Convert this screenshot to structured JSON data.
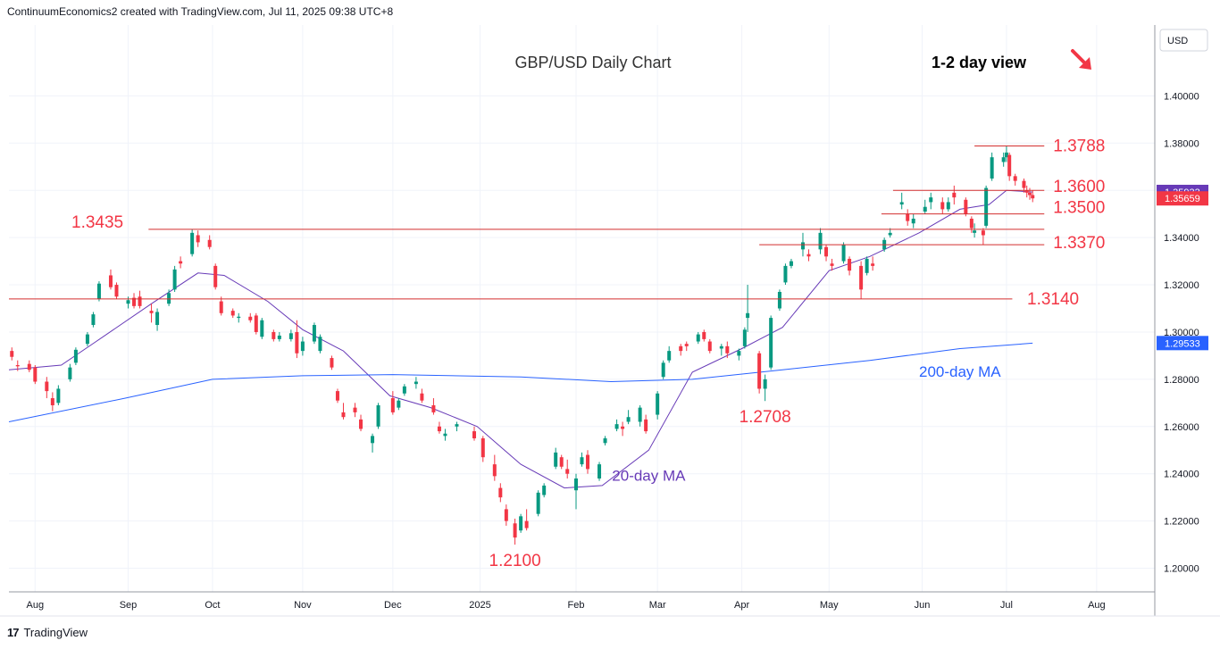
{
  "header": {
    "attribution": "ContinuumEconomics2 created with TradingView.com, Jul 11, 2025 09:38 UTC+8"
  },
  "footer": {
    "brand": "TradingView"
  },
  "chart_data": {
    "type": "candlestick",
    "title": "GBP/USD Daily Chart",
    "view_label": "1-2 day view",
    "view_direction": "down",
    "currency_label": "USD",
    "ylim": [
      1.19,
      1.43
    ],
    "y_ticks": [
      "1.40000",
      "1.38000",
      "1.36000",
      "1.34000",
      "1.32000",
      "1.30000",
      "1.28000",
      "1.26000",
      "1.24000",
      "1.22000",
      "1.20000"
    ],
    "y_tick_values": [
      1.4,
      1.38,
      1.36,
      1.34,
      1.32,
      1.3,
      1.28,
      1.26,
      1.24,
      1.22,
      1.2
    ],
    "x_ticks": [
      "Aug",
      "Sep",
      "Oct",
      "Nov",
      "Dec",
      "2025",
      "Feb",
      "Mar",
      "Apr",
      "May",
      "Jun",
      "Jul",
      "Aug"
    ],
    "x_tick_dates": [
      "2024-08-01",
      "2024-09-02",
      "2024-10-01",
      "2024-11-01",
      "2024-12-02",
      "2025-01-01",
      "2025-02-03",
      "2025-03-03",
      "2025-04-01",
      "2025-05-01",
      "2025-06-02",
      "2025-07-01",
      "2025-08-01"
    ],
    "last_price": {
      "label": "1.35659",
      "value": 1.35659,
      "color": "#f23645"
    },
    "ma200_price": {
      "label": "1.29533",
      "value": 1.29533,
      "color": "#2962ff"
    },
    "ma20_price": {
      "label": "1.35933",
      "value": 1.35933
    },
    "levels": [
      {
        "label": "1.3788",
        "value": 1.3788,
        "from": "2025-06-20",
        "to": "2025-07-14"
      },
      {
        "label": "1.3600",
        "value": 1.36,
        "from": "2025-05-23",
        "to": "2025-07-14"
      },
      {
        "label": "1.3500",
        "value": 1.35,
        "from": "2025-05-19",
        "to": "2025-07-14"
      },
      {
        "label": "1.3435",
        "value": 1.3435,
        "from": "2024-09-09",
        "to": "2025-07-14"
      },
      {
        "label": "1.3370",
        "value": 1.337,
        "from": "2025-04-07",
        "to": "2025-07-14"
      },
      {
        "label": "1.3140",
        "value": 1.314,
        "from": "2024-07-23",
        "to": "2025-07-03"
      }
    ],
    "annotations": [
      {
        "label": "1.2708",
        "date": "2025-04-09",
        "value": 1.2708
      },
      {
        "label": "1.2100",
        "date": "2025-01-13",
        "value": 1.21
      },
      {
        "label": "20-day MA",
        "date": "2025-02-28",
        "value": 1.239
      },
      {
        "label": "200-day MA",
        "date": "2025-06-15",
        "value": 1.283
      }
    ],
    "colors": {
      "up": "#089981",
      "down": "#f23645",
      "ma20": "#673ab7",
      "ma200": "#2962ff",
      "level_line": "#d32f2f",
      "level_text": "#f23645",
      "ma20_text": "#673ab7",
      "ma200_text": "#2962ff"
    },
    "series": [
      {
        "name": "20-day MA",
        "dates": [
          "2024-07-23",
          "2024-08-10",
          "2024-08-22",
          "2024-09-10",
          "2024-09-26",
          "2024-10-05",
          "2024-10-20",
          "2024-11-01",
          "2024-11-15",
          "2024-12-01",
          "2024-12-15",
          "2024-12-31",
          "2025-01-15",
          "2025-01-30",
          "2025-02-12",
          "2025-02-28",
          "2025-03-15",
          "2025-04-01",
          "2025-04-15",
          "2025-05-01",
          "2025-05-15",
          "2025-06-01",
          "2025-06-15",
          "2025-06-25",
          "2025-07-01",
          "2025-07-10"
        ],
        "values": [
          1.284,
          1.286,
          1.296,
          1.312,
          1.325,
          1.324,
          1.313,
          1.301,
          1.292,
          1.273,
          1.268,
          1.26,
          1.244,
          1.234,
          1.235,
          1.25,
          1.283,
          1.293,
          1.302,
          1.326,
          1.332,
          1.342,
          1.352,
          1.354,
          1.36,
          1.3593
        ]
      },
      {
        "name": "200-day MA",
        "dates": [
          "2024-07-23",
          "2024-09-01",
          "2024-10-01",
          "2024-11-01",
          "2024-12-02",
          "2025-01-15",
          "2025-02-15",
          "2025-03-15",
          "2025-04-15",
          "2025-05-15",
          "2025-06-15",
          "2025-07-10"
        ],
        "values": [
          1.262,
          1.272,
          1.28,
          1.2815,
          1.282,
          1.281,
          1.279,
          1.28,
          1.284,
          1.288,
          1.293,
          1.2953
        ]
      }
    ],
    "ohlc_columns": [
      "date",
      "open",
      "high",
      "low",
      "close"
    ],
    "ohlc": [
      [
        "2024-07-24",
        1.292,
        1.2935,
        1.288,
        1.2895
      ],
      [
        "2024-07-26",
        1.286,
        1.288,
        1.2835,
        1.2855
      ],
      [
        "2024-07-30",
        1.2865,
        1.288,
        1.283,
        1.284
      ],
      [
        "2024-08-01",
        1.285,
        1.286,
        1.278,
        1.279
      ],
      [
        "2024-08-05",
        1.279,
        1.281,
        1.272,
        1.275
      ],
      [
        "2024-08-07",
        1.272,
        1.2745,
        1.2665,
        1.269
      ],
      [
        "2024-08-09",
        1.27,
        1.2775,
        1.269,
        1.276
      ],
      [
        "2024-08-13",
        1.28,
        1.2865,
        1.279,
        1.285
      ],
      [
        "2024-08-15",
        1.287,
        1.2935,
        1.286,
        1.2925
      ],
      [
        "2024-08-19",
        1.295,
        1.3,
        1.294,
        1.299
      ],
      [
        "2024-08-21",
        1.303,
        1.3085,
        1.302,
        1.3075
      ],
      [
        "2024-08-23",
        1.314,
        1.3215,
        1.313,
        1.3205
      ],
      [
        "2024-08-27",
        1.324,
        1.3265,
        1.318,
        1.319
      ],
      [
        "2024-08-29",
        1.32,
        1.321,
        1.314,
        1.315
      ],
      [
        "2024-09-02",
        1.312,
        1.315,
        1.31,
        1.3135
      ],
      [
        "2024-09-04",
        1.3145,
        1.3165,
        1.31,
        1.311
      ],
      [
        "2024-09-06",
        1.315,
        1.3175,
        1.31,
        1.311
      ],
      [
        "2024-09-10",
        1.309,
        1.312,
        1.304,
        1.308
      ],
      [
        "2024-09-12",
        1.303,
        1.31,
        1.3005,
        1.3085
      ],
      [
        "2024-09-16",
        1.312,
        1.318,
        1.311,
        1.3165
      ],
      [
        "2024-09-18",
        1.318,
        1.328,
        1.317,
        1.3265
      ],
      [
        "2024-09-20",
        1.33,
        1.332,
        1.327,
        1.329
      ],
      [
        "2024-09-24",
        1.333,
        1.3435,
        1.332,
        1.342
      ],
      [
        "2024-09-26",
        1.341,
        1.343,
        1.336,
        1.338
      ],
      [
        "2024-09-30",
        1.339,
        1.341,
        1.335,
        1.336
      ],
      [
        "2024-10-02",
        1.328,
        1.329,
        1.318,
        1.319
      ],
      [
        "2024-10-04",
        1.313,
        1.315,
        1.307,
        1.308
      ],
      [
        "2024-10-08",
        1.309,
        1.31,
        1.306,
        1.307
      ],
      [
        "2024-10-10",
        1.306,
        1.308,
        1.304,
        1.3065
      ],
      [
        "2024-10-14",
        1.3065,
        1.308,
        1.304,
        1.305
      ],
      [
        "2024-10-16",
        1.307,
        1.308,
        1.299,
        1.3
      ],
      [
        "2024-10-18",
        1.298,
        1.306,
        1.297,
        1.305
      ],
      [
        "2024-10-22",
        1.3,
        1.301,
        1.296,
        1.297
      ],
      [
        "2024-10-24",
        1.297,
        1.3,
        1.296,
        1.2985
      ],
      [
        "2024-10-28",
        1.297,
        1.301,
        1.296,
        1.2995
      ],
      [
        "2024-10-30",
        1.3,
        1.305,
        1.289,
        1.291
      ],
      [
        "2024-11-01",
        1.292,
        1.298,
        1.29,
        1.296
      ],
      [
        "2024-11-05",
        1.296,
        1.304,
        1.295,
        1.303
      ],
      [
        "2024-11-07",
        1.292,
        1.299,
        1.291,
        1.298
      ],
      [
        "2024-11-11",
        1.289,
        1.29,
        1.284,
        1.285
      ],
      [
        "2024-11-13",
        1.275,
        1.276,
        1.27,
        1.271
      ],
      [
        "2024-11-15",
        1.266,
        1.27,
        1.263,
        1.264
      ],
      [
        "2024-11-19",
        1.268,
        1.27,
        1.264,
        1.266
      ],
      [
        "2024-11-21",
        1.263,
        1.265,
        1.258,
        1.259
      ],
      [
        "2024-11-25",
        1.253,
        1.257,
        1.249,
        1.256
      ],
      [
        "2024-11-27",
        1.26,
        1.27,
        1.259,
        1.269
      ],
      [
        "2024-12-02",
        1.272,
        1.275,
        1.265,
        1.266
      ],
      [
        "2024-12-04",
        1.268,
        1.272,
        1.267,
        1.271
      ],
      [
        "2024-12-06",
        1.274,
        1.278,
        1.273,
        1.277
      ],
      [
        "2024-12-10",
        1.278,
        1.281,
        1.276,
        1.279
      ],
      [
        "2024-12-12",
        1.274,
        1.276,
        1.27,
        1.271
      ],
      [
        "2024-12-16",
        1.269,
        1.272,
        1.265,
        1.266
      ],
      [
        "2024-12-18",
        1.26,
        1.262,
        1.257,
        1.258
      ],
      [
        "2024-12-20",
        1.256,
        1.259,
        1.254,
        1.257
      ],
      [
        "2024-12-24",
        1.26,
        1.262,
        1.258,
        1.261
      ],
      [
        "2024-12-30",
        1.258,
        1.26,
        1.254,
        1.255
      ],
      [
        "2025-01-02",
        1.255,
        1.256,
        1.245,
        1.247
      ],
      [
        "2025-01-06",
        1.244,
        1.248,
        1.237,
        1.239
      ],
      [
        "2025-01-08",
        1.234,
        1.236,
        1.228,
        1.23
      ],
      [
        "2025-01-10",
        1.225,
        1.227,
        1.218,
        1.22
      ],
      [
        "2025-01-13",
        1.219,
        1.221,
        1.21,
        1.213
      ],
      [
        "2025-01-15",
        1.216,
        1.223,
        1.215,
        1.222
      ],
      [
        "2025-01-17",
        1.22,
        1.225,
        1.216,
        1.217
      ],
      [
        "2025-01-21",
        1.223,
        1.233,
        1.222,
        1.232
      ],
      [
        "2025-01-23",
        1.231,
        1.236,
        1.23,
        1.235
      ],
      [
        "2025-01-27",
        1.243,
        1.251,
        1.242,
        1.249
      ],
      [
        "2025-01-29",
        1.247,
        1.248,
        1.242,
        1.243
      ],
      [
        "2025-01-31",
        1.242,
        1.246,
        1.238,
        1.24
      ],
      [
        "2025-02-03",
        1.233,
        1.24,
        1.225,
        1.238
      ],
      [
        "2025-02-05",
        1.244,
        1.249,
        1.243,
        1.247
      ],
      [
        "2025-02-07",
        1.248,
        1.25,
        1.24,
        1.242
      ],
      [
        "2025-02-11",
        1.238,
        1.245,
        1.237,
        1.244
      ],
      [
        "2025-02-13",
        1.253,
        1.256,
        1.252,
        1.255
      ],
      [
        "2025-02-17",
        1.259,
        1.263,
        1.258,
        1.261
      ],
      [
        "2025-02-19",
        1.26,
        1.262,
        1.256,
        1.259
      ],
      [
        "2025-02-21",
        1.262,
        1.267,
        1.261,
        1.264
      ],
      [
        "2025-02-25",
        1.262,
        1.269,
        1.26,
        1.268
      ],
      [
        "2025-02-27",
        1.263,
        1.265,
        1.257,
        1.258
      ],
      [
        "2025-03-03",
        1.265,
        1.275,
        1.263,
        1.274
      ],
      [
        "2025-03-05",
        1.281,
        1.288,
        1.28,
        1.287
      ],
      [
        "2025-03-07",
        1.288,
        1.294,
        1.287,
        1.292
      ],
      [
        "2025-03-11",
        1.294,
        1.295,
        1.29,
        1.292
      ],
      [
        "2025-03-13",
        1.295,
        1.296,
        1.292,
        1.294
      ],
      [
        "2025-03-17",
        1.296,
        1.3,
        1.295,
        1.299
      ],
      [
        "2025-03-19",
        1.3,
        1.301,
        1.296,
        1.297
      ],
      [
        "2025-03-21",
        1.296,
        1.297,
        1.291,
        1.292
      ],
      [
        "2025-03-25",
        1.293,
        1.295,
        1.29,
        1.294
      ],
      [
        "2025-03-27",
        1.294,
        1.296,
        1.289,
        1.291
      ],
      [
        "2025-03-31",
        1.29,
        1.293,
        1.288,
        1.292
      ],
      [
        "2025-04-02",
        1.294,
        1.302,
        1.293,
        1.301
      ],
      [
        "2025-04-03",
        1.306,
        1.32,
        1.3,
        1.308
      ],
      [
        "2025-04-07",
        1.291,
        1.292,
        1.274,
        1.276
      ],
      [
        "2025-04-09",
        1.276,
        1.282,
        1.2708,
        1.28
      ],
      [
        "2025-04-11",
        1.285,
        1.307,
        1.284,
        1.306
      ],
      [
        "2025-04-14",
        1.31,
        1.318,
        1.309,
        1.317
      ],
      [
        "2025-04-16",
        1.321,
        1.329,
        1.32,
        1.328
      ],
      [
        "2025-04-18",
        1.328,
        1.331,
        1.327,
        1.33
      ],
      [
        "2025-04-22",
        1.335,
        1.342,
        1.332,
        1.338
      ],
      [
        "2025-04-24",
        1.333,
        1.335,
        1.33,
        1.332
      ],
      [
        "2025-04-28",
        1.335,
        1.344,
        1.333,
        1.342
      ],
      [
        "2025-04-30",
        1.336,
        1.337,
        1.33,
        1.332
      ],
      [
        "2025-05-02",
        1.329,
        1.331,
        1.326,
        1.328
      ],
      [
        "2025-05-06",
        1.33,
        1.338,
        1.329,
        1.337
      ],
      [
        "2025-05-08",
        1.331,
        1.332,
        1.324,
        1.326
      ],
      [
        "2025-05-12",
        1.328,
        1.33,
        1.314,
        1.318
      ],
      [
        "2025-05-14",
        1.325,
        1.332,
        1.324,
        1.331
      ],
      [
        "2025-05-16",
        1.329,
        1.332,
        1.326,
        1.328
      ],
      [
        "2025-05-20",
        1.335,
        1.34,
        1.334,
        1.339
      ],
      [
        "2025-05-22",
        1.341,
        1.344,
        1.34,
        1.342
      ],
      [
        "2025-05-26",
        1.354,
        1.359,
        1.352,
        1.355
      ],
      [
        "2025-05-28",
        1.35,
        1.352,
        1.345,
        1.347
      ],
      [
        "2025-05-30",
        1.346,
        1.35,
        1.344,
        1.348
      ],
      [
        "2025-06-03",
        1.351,
        1.356,
        1.35,
        1.353
      ],
      [
        "2025-06-05",
        1.355,
        1.359,
        1.352,
        1.357
      ],
      [
        "2025-06-09",
        1.355,
        1.357,
        1.35,
        1.352
      ],
      [
        "2025-06-11",
        1.352,
        1.357,
        1.351,
        1.355
      ],
      [
        "2025-06-13",
        1.359,
        1.362,
        1.354,
        1.357
      ],
      [
        "2025-06-17",
        1.356,
        1.357,
        1.349,
        1.35
      ],
      [
        "2025-06-19",
        1.348,
        1.349,
        1.342,
        1.344
      ],
      [
        "2025-06-20",
        1.342,
        1.346,
        1.34,
        1.343
      ],
      [
        "2025-06-23",
        1.343,
        1.344,
        1.337,
        1.341
      ],
      [
        "2025-06-24",
        1.345,
        1.362,
        1.344,
        1.361
      ],
      [
        "2025-06-26",
        1.365,
        1.376,
        1.364,
        1.374
      ],
      [
        "2025-06-30",
        1.372,
        1.376,
        1.37,
        1.374
      ],
      [
        "2025-07-01",
        1.374,
        1.3788,
        1.372,
        1.376
      ],
      [
        "2025-07-02",
        1.375,
        1.376,
        1.364,
        1.366
      ],
      [
        "2025-07-04",
        1.366,
        1.367,
        1.362,
        1.364
      ],
      [
        "2025-07-07",
        1.364,
        1.365,
        1.359,
        1.361
      ],
      [
        "2025-07-08",
        1.36,
        1.362,
        1.357,
        1.359
      ],
      [
        "2025-07-09",
        1.359,
        1.361,
        1.356,
        1.358
      ],
      [
        "2025-07-10",
        1.358,
        1.36,
        1.355,
        1.3566
      ]
    ]
  }
}
